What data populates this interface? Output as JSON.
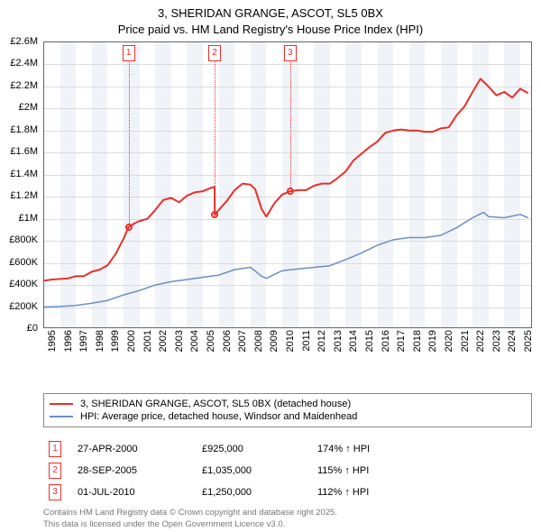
{
  "title": {
    "line1": "3, SHERIDAN GRANGE, ASCOT, SL5 0BX",
    "line2": "Price paid vs. HM Land Registry's House Price Index (HPI)"
  },
  "chart": {
    "type": "line",
    "x_years": [
      1995,
      1996,
      1997,
      1998,
      1999,
      2000,
      2001,
      2002,
      2003,
      2004,
      2005,
      2006,
      2007,
      2008,
      2009,
      2010,
      2011,
      2012,
      2013,
      2014,
      2015,
      2016,
      2017,
      2018,
      2019,
      2020,
      2021,
      2022,
      2023,
      2024,
      2025
    ],
    "x_min": 1995,
    "x_max": 2025.8,
    "y_min": 0,
    "y_max": 2600000,
    "y_ticks": [
      0,
      200000,
      400000,
      600000,
      800000,
      1000000,
      1200000,
      1400000,
      1600000,
      1800000,
      2000000,
      2200000,
      2400000,
      2600000
    ],
    "y_tick_labels": [
      "£0",
      "£200K",
      "£400K",
      "£600K",
      "£800K",
      "£1M",
      "£1.2M",
      "£1.4M",
      "£1.6M",
      "£1.8M",
      "£2M",
      "£2.2M",
      "£2.4M",
      "£2.6M"
    ],
    "band_color": "#f0f3f7",
    "grid_color": "#dcdcdc",
    "background_color": "#ffffff",
    "axis_fontsize": 11,
    "title_fontsize": 13,
    "series": [
      {
        "name": "property",
        "label": "3, SHERIDAN GRANGE, ASCOT, SL5 0BX (detached house)",
        "color": "#e8302b",
        "width": 2,
        "points": [
          [
            1995.0,
            440000
          ],
          [
            1995.5,
            450000
          ],
          [
            1996.0,
            455000
          ],
          [
            1996.5,
            460000
          ],
          [
            1997.0,
            480000
          ],
          [
            1997.5,
            480000
          ],
          [
            1998.0,
            520000
          ],
          [
            1998.5,
            540000
          ],
          [
            1999.0,
            580000
          ],
          [
            1999.5,
            680000
          ],
          [
            2000.0,
            820000
          ],
          [
            2000.32,
            925000
          ],
          [
            2000.7,
            960000
          ],
          [
            2001.0,
            980000
          ],
          [
            2001.5,
            1000000
          ],
          [
            2002.0,
            1080000
          ],
          [
            2002.5,
            1170000
          ],
          [
            2003.0,
            1190000
          ],
          [
            2003.5,
            1150000
          ],
          [
            2004.0,
            1210000
          ],
          [
            2004.5,
            1240000
          ],
          [
            2005.0,
            1250000
          ],
          [
            2005.5,
            1280000
          ],
          [
            2005.74,
            1290000
          ],
          [
            2005.75,
            1035000
          ],
          [
            2006.0,
            1080000
          ],
          [
            2006.5,
            1160000
          ],
          [
            2007.0,
            1260000
          ],
          [
            2007.5,
            1320000
          ],
          [
            2008.0,
            1310000
          ],
          [
            2008.3,
            1270000
          ],
          [
            2008.7,
            1090000
          ],
          [
            2009.0,
            1020000
          ],
          [
            2009.5,
            1140000
          ],
          [
            2010.0,
            1220000
          ],
          [
            2010.5,
            1250000
          ],
          [
            2011.0,
            1260000
          ],
          [
            2011.5,
            1260000
          ],
          [
            2012.0,
            1300000
          ],
          [
            2012.5,
            1320000
          ],
          [
            2013.0,
            1320000
          ],
          [
            2013.5,
            1370000
          ],
          [
            2014.0,
            1430000
          ],
          [
            2014.5,
            1530000
          ],
          [
            2015.0,
            1590000
          ],
          [
            2015.5,
            1650000
          ],
          [
            2016.0,
            1700000
          ],
          [
            2016.5,
            1780000
          ],
          [
            2017.0,
            1800000
          ],
          [
            2017.5,
            1810000
          ],
          [
            2018.0,
            1800000
          ],
          [
            2018.5,
            1800000
          ],
          [
            2019.0,
            1790000
          ],
          [
            2019.5,
            1790000
          ],
          [
            2020.0,
            1820000
          ],
          [
            2020.5,
            1830000
          ],
          [
            2021.0,
            1940000
          ],
          [
            2021.5,
            2020000
          ],
          [
            2022.0,
            2150000
          ],
          [
            2022.5,
            2270000
          ],
          [
            2023.0,
            2200000
          ],
          [
            2023.5,
            2120000
          ],
          [
            2024.0,
            2150000
          ],
          [
            2024.5,
            2100000
          ],
          [
            2025.0,
            2180000
          ],
          [
            2025.5,
            2140000
          ]
        ]
      },
      {
        "name": "hpi",
        "label": "HPI: Average price, detached house, Windsor and Maidenhead",
        "color": "#6b8fc4",
        "width": 1.5,
        "points": [
          [
            1995.0,
            200000
          ],
          [
            1996.0,
            205000
          ],
          [
            1997.0,
            215000
          ],
          [
            1998.0,
            235000
          ],
          [
            1999.0,
            260000
          ],
          [
            2000.0,
            310000
          ],
          [
            2001.0,
            350000
          ],
          [
            2002.0,
            400000
          ],
          [
            2003.0,
            430000
          ],
          [
            2004.0,
            450000
          ],
          [
            2005.0,
            470000
          ],
          [
            2006.0,
            490000
          ],
          [
            2007.0,
            540000
          ],
          [
            2008.0,
            560000
          ],
          [
            2008.7,
            480000
          ],
          [
            2009.0,
            460000
          ],
          [
            2010.0,
            530000
          ],
          [
            2011.0,
            545000
          ],
          [
            2012.0,
            560000
          ],
          [
            2013.0,
            575000
          ],
          [
            2014.0,
            630000
          ],
          [
            2015.0,
            690000
          ],
          [
            2016.0,
            760000
          ],
          [
            2017.0,
            810000
          ],
          [
            2018.0,
            830000
          ],
          [
            2019.0,
            830000
          ],
          [
            2020.0,
            850000
          ],
          [
            2021.0,
            920000
          ],
          [
            2022.0,
            1010000
          ],
          [
            2022.7,
            1060000
          ],
          [
            2023.0,
            1020000
          ],
          [
            2024.0,
            1010000
          ],
          [
            2025.0,
            1040000
          ],
          [
            2025.5,
            1010000
          ]
        ]
      }
    ],
    "sale_markers": [
      {
        "num": "1",
        "x": 2000.32,
        "y": 925000
      },
      {
        "num": "2",
        "x": 2005.74,
        "y": 1035000
      },
      {
        "num": "3",
        "x": 2010.5,
        "y": 1250000
      }
    ]
  },
  "legend": {
    "rows": [
      {
        "color": "#e8302b",
        "text": "3, SHERIDAN GRANGE, ASCOT, SL5 0BX (detached house)"
      },
      {
        "color": "#6b8fc4",
        "text": "HPI: Average price, detached house, Windsor and Maidenhead"
      }
    ]
  },
  "sales": [
    {
      "num": "1",
      "date": "27-APR-2000",
      "price": "£925,000",
      "hpi": "174% ↑ HPI"
    },
    {
      "num": "2",
      "date": "28-SEP-2005",
      "price": "£1,035,000",
      "hpi": "115% ↑ HPI"
    },
    {
      "num": "3",
      "date": "01-JUL-2010",
      "price": "£1,250,000",
      "hpi": "112% ↑ HPI"
    }
  ],
  "footer": {
    "line1": "Contains HM Land Registry data © Crown copyright and database right 2025.",
    "line2": "This data is licensed under the Open Government Licence v3.0."
  }
}
